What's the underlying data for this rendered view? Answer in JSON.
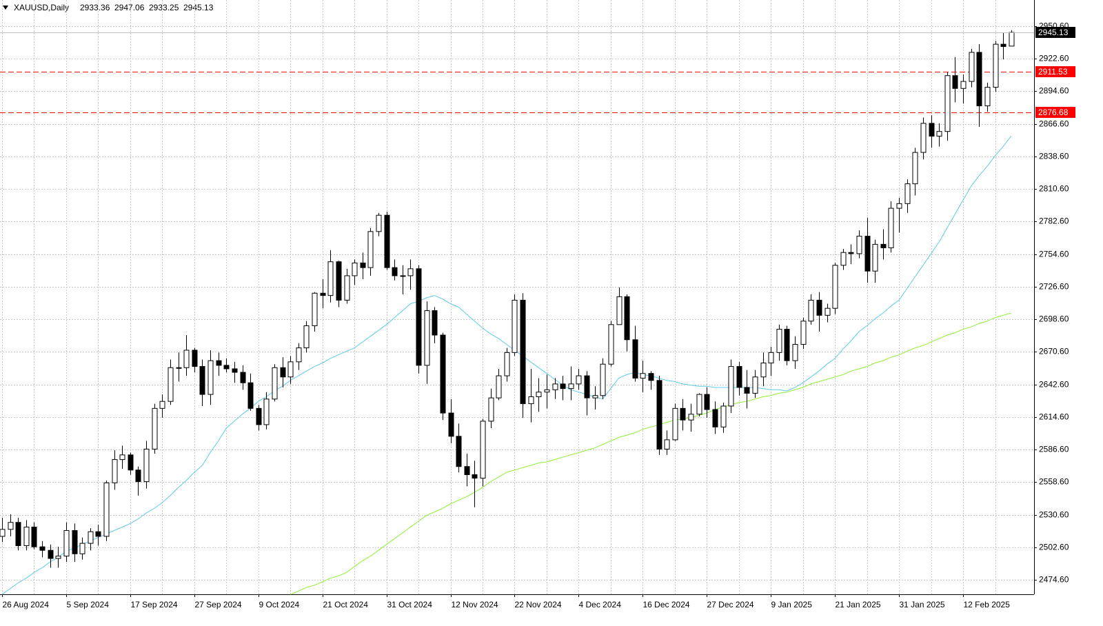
{
  "chart_data": {
    "type": "candlestick",
    "title": "XAUUSD,Daily",
    "categories": [
      "26 Aug 2024",
      null,
      null,
      null,
      null,
      null,
      null,
      null,
      "5 Sep 2024",
      null,
      null,
      null,
      null,
      null,
      null,
      null,
      "17 Sep 2024",
      null,
      null,
      null,
      null,
      null,
      null,
      null,
      "27 Sep 2024",
      null,
      null,
      null,
      null,
      null,
      null,
      null,
      "9 Oct 2024",
      null,
      null,
      null,
      null,
      null,
      null,
      null,
      "21 Oct 2024",
      null,
      null,
      null,
      null,
      null,
      null,
      null,
      "31 Oct 2024",
      null,
      null,
      null,
      null,
      null,
      null,
      null,
      "12 Nov 2024",
      null,
      null,
      null,
      null,
      null,
      null,
      null,
      "22 Nov 2024",
      null,
      null,
      null,
      null,
      null,
      null,
      null,
      "4 Dec 2024",
      null,
      null,
      null,
      null,
      null,
      null,
      null,
      "16 Dec 2024",
      null,
      null,
      null,
      null,
      null,
      null,
      null,
      "27 Dec 2024",
      null,
      null,
      null,
      null,
      null,
      null,
      null,
      "9 Jan 2025",
      null,
      null,
      null,
      null,
      null,
      null,
      null,
      "21 Jan 2025",
      null,
      null,
      null,
      null,
      null,
      null,
      null,
      "31 Jan 2025",
      null,
      null,
      null,
      null,
      null,
      null,
      null,
      "12 Feb 2025",
      null,
      null,
      null,
      null,
      null,
      null
    ],
    "open": [
      2512,
      2518,
      2524,
      2504,
      2520,
      2503,
      2500,
      2493,
      2495,
      2517,
      2497,
      2506,
      2516,
      2512,
      2558,
      2578,
      2582,
      2569,
      2559,
      2587,
      2622,
      2628,
      2657,
      2657,
      2672,
      2658,
      2634,
      2663,
      2659,
      2656,
      2653,
      2644,
      2622,
      2608,
      2630,
      2657,
      2649,
      2662,
      2674,
      2693,
      2721,
      2719,
      2748,
      2715,
      2736,
      2747,
      2743,
      2774,
      2788,
      2743,
      2736,
      2736,
      2742,
      2659,
      2706,
      2685,
      2618,
      2598,
      2572,
      2565,
      2562,
      2611,
      2631,
      2650,
      2670,
      2715,
      2626,
      2632,
      2636,
      2638,
      2643,
      2639,
      2643,
      2650,
      2631,
      2633,
      2660,
      2694,
      2718,
      2681,
      2648,
      2652,
      2646,
      2587,
      2595,
      2622,
      2612,
      2617,
      2634,
      2621,
      2606,
      2624,
      2658,
      2640,
      2635,
      2649,
      2661,
      2670,
      2690,
      2663,
      2677,
      2697,
      2715,
      2702,
      2708,
      2745,
      2756,
      2755,
      2770,
      2740,
      2763,
      2760,
      2794,
      2798,
      2815,
      2842,
      2867,
      2856,
      2860,
      2908,
      2897,
      2903,
      2928,
      2882,
      2898,
      2935,
      2933.36
    ],
    "high": [
      2528,
      2531,
      2528,
      2526,
      2524,
      2508,
      2505,
      2503,
      2524,
      2523,
      2511,
      2519,
      2522,
      2560,
      2586,
      2590,
      2584,
      2572,
      2594,
      2626,
      2634,
      2664,
      2670,
      2685,
      2674,
      2664,
      2672,
      2670,
      2665,
      2662,
      2659,
      2652,
      2625,
      2636,
      2660,
      2666,
      2667,
      2678,
      2697,
      2722,
      2733,
      2758,
      2749,
      2742,
      2750,
      2756,
      2777,
      2790,
      2791,
      2750,
      2745,
      2750,
      2745,
      2714,
      2709,
      2687,
      2630,
      2609,
      2583,
      2577,
      2613,
      2639,
      2656,
      2674,
      2720,
      2721,
      2656,
      2648,
      2651,
      2648,
      2650,
      2658,
      2656,
      2654,
      2641,
      2665,
      2697,
      2726,
      2720,
      2693,
      2663,
      2654,
      2650,
      2603,
      2626,
      2630,
      2626,
      2635,
      2640,
      2628,
      2627,
      2664,
      2662,
      2655,
      2655,
      2670,
      2675,
      2694,
      2693,
      2684,
      2700,
      2720,
      2722,
      2712,
      2747,
      2759,
      2763,
      2775,
      2786,
      2767,
      2776,
      2800,
      2803,
      2819,
      2846,
      2872,
      2874,
      2867,
      2911,
      2924,
      2909,
      2931,
      2935,
      2902,
      2938,
      2945,
      2947.06
    ],
    "low": [
      2507,
      2512,
      2500,
      2500,
      2501,
      2494,
      2485,
      2485,
      2490,
      2490,
      2492,
      2500,
      2504,
      2508,
      2552,
      2570,
      2565,
      2547,
      2553,
      2583,
      2614,
      2625,
      2645,
      2650,
      2653,
      2624,
      2625,
      2650,
      2653,
      2644,
      2638,
      2620,
      2603,
      2604,
      2628,
      2640,
      2643,
      2655,
      2670,
      2688,
      2708,
      2713,
      2709,
      2712,
      2728,
      2733,
      2736,
      2770,
      2741,
      2732,
      2720,
      2724,
      2652,
      2643,
      2678,
      2612,
      2592,
      2567,
      2555,
      2537,
      2555,
      2605,
      2629,
      2645,
      2667,
      2614,
      2610,
      2619,
      2622,
      2630,
      2629,
      2629,
      2638,
      2616,
      2621,
      2630,
      2658,
      2694,
      2671,
      2645,
      2636,
      2638,
      2582,
      2582,
      2594,
      2603,
      2602,
      2615,
      2614,
      2600,
      2601,
      2618,
      2633,
      2622,
      2631,
      2641,
      2650,
      2663,
      2659,
      2656,
      2673,
      2694,
      2688,
      2696,
      2703,
      2741,
      2746,
      2751,
      2730,
      2730,
      2750,
      2756,
      2773,
      2790,
      2805,
      2836,
      2846,
      2847,
      2852,
      2885,
      2884,
      2898,
      2864,
      2877,
      2894,
      2922,
      2933.25
    ],
    "close": [
      2518,
      2524,
      2504,
      2520,
      2503,
      2500,
      2493,
      2495,
      2517,
      2497,
      2506,
      2516,
      2512,
      2558,
      2578,
      2582,
      2569,
      2559,
      2587,
      2622,
      2628,
      2657,
      2657,
      2672,
      2658,
      2634,
      2663,
      2659,
      2656,
      2653,
      2644,
      2622,
      2608,
      2630,
      2657,
      2649,
      2662,
      2674,
      2693,
      2721,
      2719,
      2748,
      2715,
      2736,
      2747,
      2743,
      2774,
      2788,
      2743,
      2736,
      2736,
      2742,
      2659,
      2706,
      2685,
      2618,
      2598,
      2572,
      2565,
      2562,
      2611,
      2631,
      2650,
      2670,
      2715,
      2626,
      2632,
      2636,
      2638,
      2643,
      2639,
      2643,
      2650,
      2631,
      2633,
      2660,
      2694,
      2718,
      2681,
      2648,
      2652,
      2646,
      2587,
      2595,
      2622,
      2612,
      2617,
      2634,
      2621,
      2606,
      2624,
      2658,
      2640,
      2635,
      2649,
      2661,
      2670,
      2690,
      2663,
      2677,
      2697,
      2715,
      2702,
      2708,
      2745,
      2756,
      2755,
      2770,
      2740,
      2763,
      2760,
      2794,
      2798,
      2815,
      2842,
      2867,
      2856,
      2860,
      2908,
      2897,
      2903,
      2928,
      2882,
      2898,
      2935,
      2933,
      2945.13
    ],
    "up_color": "#ffffff",
    "down_color": "#000000",
    "moving_averages": [
      {
        "color": "#5ccbe8",
        "values": [
          2462,
          2467,
          2472,
          2476,
          2481,
          2485,
          2490,
          2494,
          2499,
          2502,
          2505,
          2508,
          2511,
          2514,
          2517,
          2520,
          2523,
          2527,
          2532,
          2536,
          2541,
          2547,
          2554,
          2560,
          2567,
          2573,
          2584,
          2594,
          2605,
          2611,
          2617,
          2622,
          2628,
          2632,
          2637,
          2641,
          2646,
          2650,
          2654,
          2658,
          2661,
          2665,
          2668,
          2671,
          2674,
          2679,
          2684,
          2689,
          2694,
          2700,
          2706,
          2712,
          2714,
          2717,
          2719,
          2716,
          2712,
          2709,
          2703,
          2697,
          2691,
          2686,
          2682,
          2677,
          2672,
          2667,
          2662,
          2657,
          2652,
          2647,
          2642,
          2638,
          2636,
          2634,
          2632,
          2630,
          2639,
          2648,
          2651,
          2653,
          2651,
          2650,
          2648,
          2646,
          2645,
          2643,
          2642,
          2641,
          2641,
          2640,
          2640,
          2640,
          2640,
          2640,
          2640,
          2639,
          2638,
          2638,
          2637,
          2640,
          2644,
          2649,
          2654,
          2660,
          2665,
          2673,
          2680,
          2688,
          2693,
          2699,
          2704,
          2710,
          2715,
          2725,
          2735,
          2745,
          2755,
          2765,
          2777,
          2789,
          2801,
          2813,
          2822,
          2830,
          2839,
          2847,
          2856
        ]
      },
      {
        "color": "#8ff031",
        "values": [
          null,
          null,
          null,
          null,
          null,
          null,
          null,
          null,
          null,
          null,
          null,
          null,
          null,
          null,
          null,
          null,
          null,
          null,
          null,
          null,
          null,
          null,
          null,
          null,
          null,
          null,
          null,
          null,
          null,
          null,
          null,
          null,
          null,
          null,
          null,
          null,
          2462,
          2465,
          2468,
          2470,
          2473,
          2476,
          2478,
          2481,
          2486,
          2491,
          2495,
          2500,
          2505,
          2510,
          2515,
          2520,
          2525,
          2530,
          2533,
          2536,
          2540,
          2543,
          2546,
          2550,
          2554,
          2559,
          2563,
          2567,
          2569,
          2571,
          2573,
          2575,
          2576,
          2578,
          2580,
          2582,
          2584,
          2586,
          2588,
          2591,
          2594,
          2597,
          2599,
          2601,
          2604,
          2606,
          2608,
          2610,
          2612,
          2613,
          2614,
          2616,
          2618,
          2621,
          2623,
          2625,
          2627,
          2628,
          2630,
          2632,
          2633,
          2635,
          2636,
          2638,
          2640,
          2643,
          2645,
          2647,
          2649,
          2651,
          2654,
          2656,
          2658,
          2661,
          2663,
          2666,
          2668,
          2671,
          2674,
          2676,
          2679,
          2682,
          2685,
          2687,
          2690,
          2692,
          2695,
          2697,
          2700,
          2702,
          2704
        ]
      }
    ],
    "hlines": [
      {
        "value": 2911.53,
        "color": "#ff0000"
      },
      {
        "value": 2876.68,
        "color": "#ff0000"
      }
    ],
    "ylim": [
      2462.2,
      2973.0
    ],
    "yticks": [
      {
        "value": 2950.6,
        "label": "2950.60"
      },
      {
        "value": 2922.6,
        "label": "2922.60"
      },
      {
        "value": 2894.6,
        "label": "2894.60"
      },
      {
        "value": 2866.6,
        "label": "2866.60"
      },
      {
        "value": 2838.6,
        "label": "2838.60"
      },
      {
        "value": 2810.6,
        "label": "2810.60"
      },
      {
        "value": 2782.6,
        "label": "2782.60"
      },
      {
        "value": 2754.6,
        "label": "2754.60"
      },
      {
        "value": 2726.6,
        "label": "2726.60"
      },
      {
        "value": 2698.6,
        "label": "2698.60"
      },
      {
        "value": 2670.6,
        "label": "2670.60"
      },
      {
        "value": 2642.6,
        "label": "2642.60"
      },
      {
        "value": 2614.6,
        "label": "2614.60"
      },
      {
        "value": 2586.6,
        "label": "2586.60"
      },
      {
        "value": 2558.6,
        "label": "2558.60"
      },
      {
        "value": 2530.6,
        "label": "2530.60"
      },
      {
        "value": 2502.6,
        "label": "2502.60"
      },
      {
        "value": 2474.6,
        "label": "2474.60"
      }
    ],
    "grid": true
  }
}
